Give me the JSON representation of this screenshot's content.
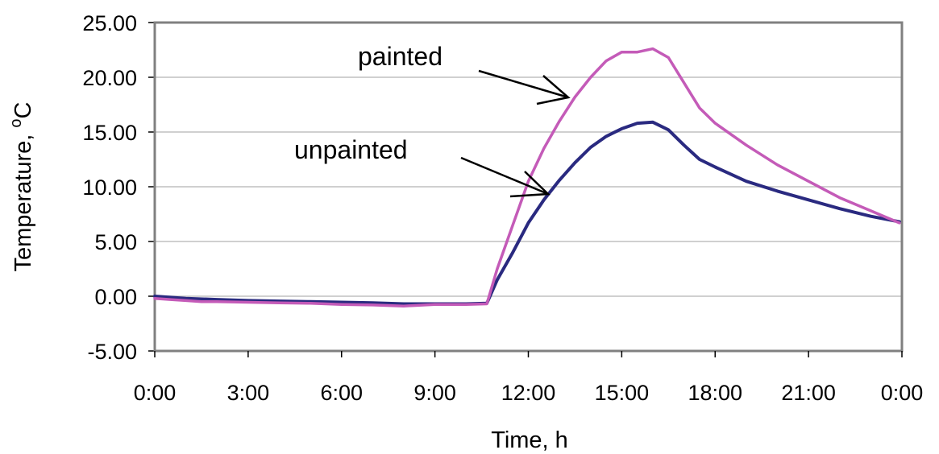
{
  "colors": {
    "painted": "#C45BB8",
    "unpainted": "#2A2A80",
    "gridline": "#C0C0C0",
    "plot_border": "#808080"
  },
  "chart_data": {
    "type": "line",
    "xlabel": "Time,  h",
    "ylabel_text": "Temperature, ",
    "ylabel_sup": "o",
    "ylabel_unit": "C",
    "ylim": [
      -5,
      25
    ],
    "xlim_hours": [
      0,
      24
    ],
    "yticks": [
      "-5.00",
      "0.00",
      "5.00",
      "10.00",
      "15.00",
      "20.00",
      "25.00"
    ],
    "xticks": [
      "0:00",
      "3:00",
      "6:00",
      "9:00",
      "12:00",
      "15:00",
      "18:00",
      "21:00",
      "0:00"
    ],
    "grid": "horizontal",
    "annotations": [
      {
        "text": "painted",
        "series": "painted"
      },
      {
        "text": "unpainted",
        "series": "unpainted"
      }
    ],
    "series": [
      {
        "name": "painted",
        "points": [
          [
            "0:00",
            -0.2
          ],
          [
            "0:30",
            -0.3
          ],
          [
            "1:00",
            -0.4
          ],
          [
            "1:30",
            -0.5
          ],
          [
            "2:00",
            -0.5
          ],
          [
            "3:00",
            -0.55
          ],
          [
            "4:00",
            -0.6
          ],
          [
            "5:00",
            -0.65
          ],
          [
            "6:00",
            -0.75
          ],
          [
            "7:00",
            -0.8
          ],
          [
            "8:00",
            -0.9
          ],
          [
            "9:00",
            -0.75
          ],
          [
            "10:00",
            -0.75
          ],
          [
            "10:40",
            -0.7
          ],
          [
            "11:00",
            2.5
          ],
          [
            "11:30",
            6.5
          ],
          [
            "12:00",
            10.5
          ],
          [
            "12:30",
            13.5
          ],
          [
            "13:00",
            16.0
          ],
          [
            "13:30",
            18.2
          ],
          [
            "14:00",
            20.0
          ],
          [
            "14:30",
            21.5
          ],
          [
            "15:00",
            22.3
          ],
          [
            "15:30",
            22.3
          ],
          [
            "16:00",
            22.6
          ],
          [
            "16:30",
            21.8
          ],
          [
            "17:00",
            19.5
          ],
          [
            "17:30",
            17.2
          ],
          [
            "18:00",
            15.8
          ],
          [
            "19:00",
            13.8
          ],
          [
            "20:00",
            12.0
          ],
          [
            "21:00",
            10.5
          ],
          [
            "22:00",
            9.0
          ],
          [
            "23:00",
            7.8
          ],
          [
            "23:55",
            6.7
          ]
        ]
      },
      {
        "name": "unpainted",
        "points": [
          [
            "0:00",
            0.0
          ],
          [
            "0:30",
            -0.1
          ],
          [
            "1:00",
            -0.2
          ],
          [
            "2:00",
            -0.3
          ],
          [
            "3:00",
            -0.4
          ],
          [
            "4:00",
            -0.45
          ],
          [
            "5:00",
            -0.5
          ],
          [
            "6:00",
            -0.55
          ],
          [
            "7:00",
            -0.6
          ],
          [
            "8:00",
            -0.7
          ],
          [
            "9:00",
            -0.7
          ],
          [
            "10:00",
            -0.7
          ],
          [
            "10:40",
            -0.65
          ],
          [
            "11:00",
            1.5
          ],
          [
            "11:30",
            4.0
          ],
          [
            "12:00",
            6.7
          ],
          [
            "12:30",
            8.8
          ],
          [
            "13:00",
            10.6
          ],
          [
            "13:30",
            12.2
          ],
          [
            "14:00",
            13.6
          ],
          [
            "14:30",
            14.6
          ],
          [
            "15:00",
            15.3
          ],
          [
            "15:30",
            15.8
          ],
          [
            "16:00",
            15.9
          ],
          [
            "16:30",
            15.2
          ],
          [
            "17:00",
            13.8
          ],
          [
            "17:30",
            12.5
          ],
          [
            "18:00",
            11.8
          ],
          [
            "19:00",
            10.5
          ],
          [
            "20:00",
            9.6
          ],
          [
            "21:00",
            8.8
          ],
          [
            "22:00",
            8.0
          ],
          [
            "23:00",
            7.3
          ],
          [
            "23:55",
            6.8
          ]
        ]
      }
    ]
  }
}
